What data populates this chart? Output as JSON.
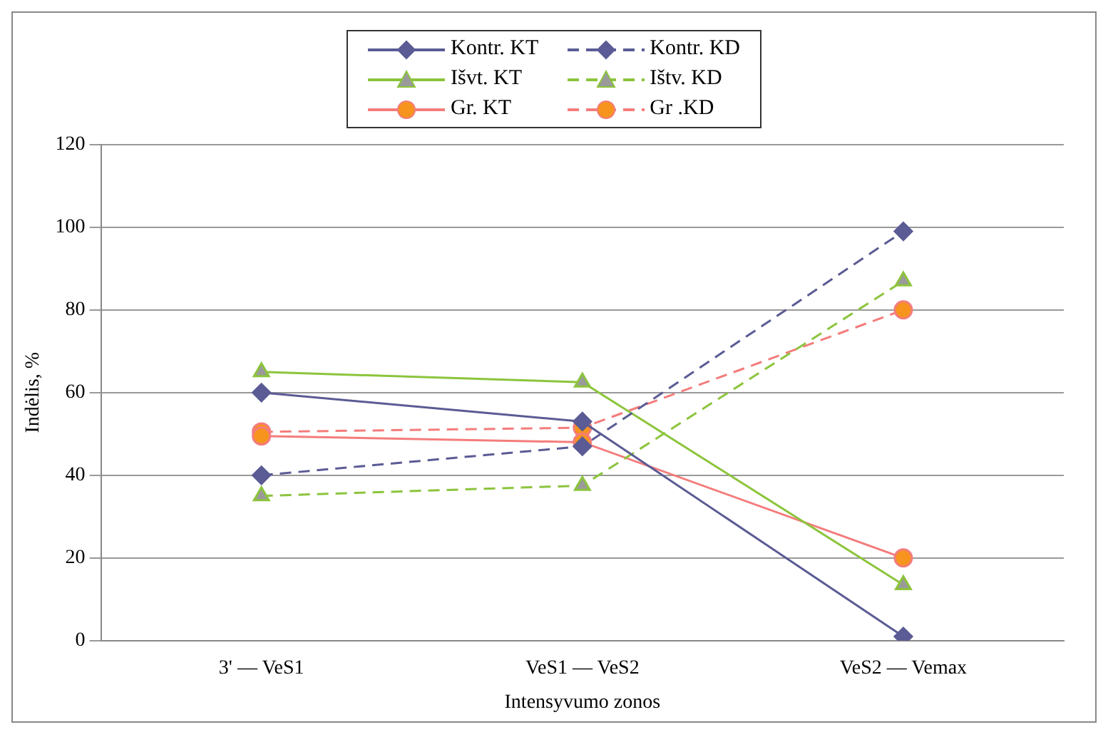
{
  "chart_data": {
    "type": "line",
    "xlabel": "Intensyvumo zonos",
    "ylabel": "Indėlis, %",
    "categories": [
      "3' — VeS1",
      "VeS1 — VeS2",
      "VeS2 — Vemax"
    ],
    "ylim": [
      0,
      120
    ],
    "yticks": [
      0,
      20,
      40,
      60,
      80,
      100,
      120
    ],
    "grid": "y",
    "legend": "top",
    "series": [
      {
        "name": "Kontr. KT",
        "color": "#5b5b95",
        "marker": "diamond",
        "line_style": "solid",
        "values": [
          60,
          53,
          1
        ]
      },
      {
        "name": "Kontr. KD",
        "color": "#5b5b95",
        "marker": "diamond",
        "line_style": "dashed",
        "values": [
          40,
          47,
          99
        ]
      },
      {
        "name": "Išvt. KT",
        "color": "#8cc43c",
        "marker": "triangle",
        "line_style": "solid",
        "values": [
          65,
          62.5,
          13.5
        ]
      },
      {
        "name": "Ištv. KD",
        "color": "#8cc43c",
        "marker": "triangle",
        "line_style": "dashed",
        "values": [
          35,
          37.5,
          87
        ]
      },
      {
        "name": "Gr. KT",
        "color": "#f47c7c",
        "marker": "circle",
        "line_style": "solid",
        "values": [
          49.5,
          48,
          20
        ]
      },
      {
        "name": "Gr .KD",
        "color": "#f47c7c",
        "marker": "circle",
        "line_style": "dashed",
        "values": [
          50.5,
          51.5,
          80
        ]
      }
    ]
  }
}
